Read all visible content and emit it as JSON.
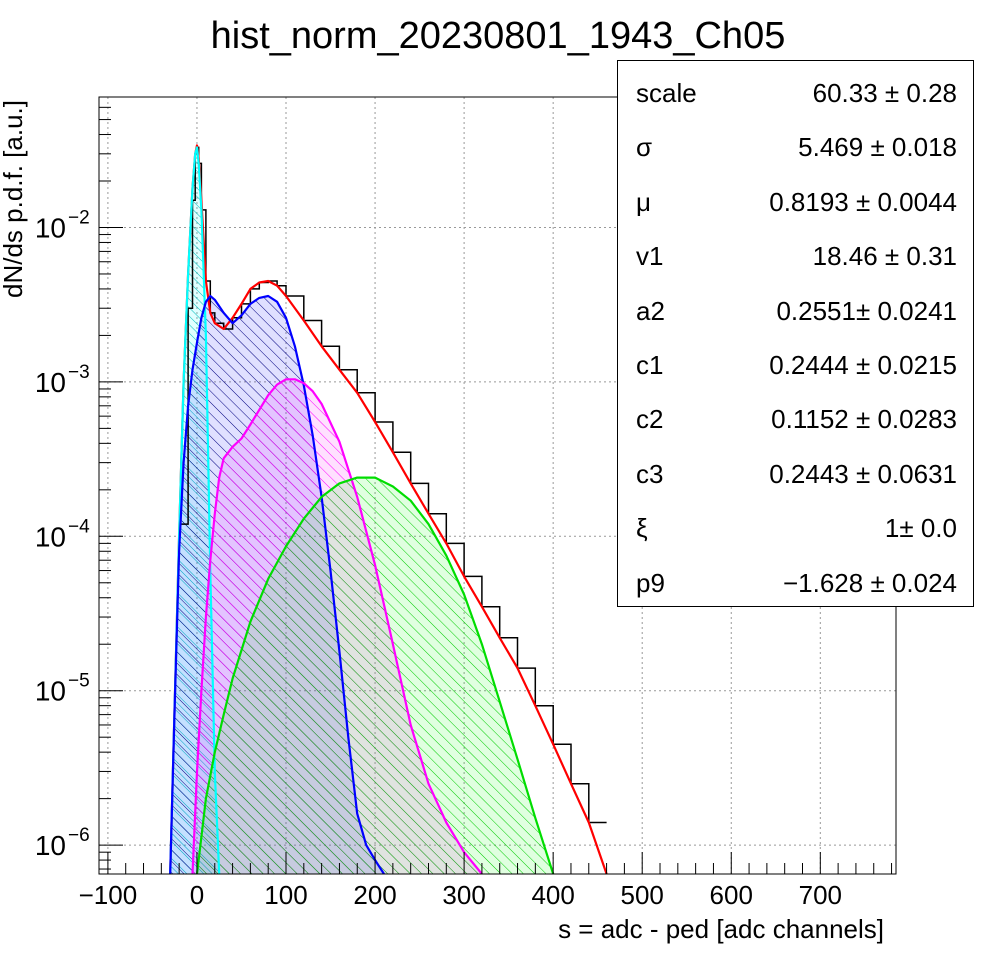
{
  "chart_data": {
    "type": "line",
    "title": "hist_norm_20230801_1943_Ch05",
    "xlabel": "s = adc - ped [adc channels]",
    "ylabel": "dN/ds p.d.f. [a.u.]",
    "xlim": [
      -110,
      785
    ],
    "ylim": [
      6.5e-07,
      0.07
    ],
    "yscale": "log",
    "grid": true,
    "x_ticks": [
      -100,
      0,
      100,
      200,
      300,
      400,
      500,
      600,
      700
    ],
    "x_tick_labels": [
      "−100",
      "0",
      "100",
      "200",
      "300",
      "400",
      "500",
      "600",
      "700"
    ],
    "y_ticks": [
      {
        "value": 0.01,
        "base": "10",
        "exp": "−2"
      },
      {
        "value": 0.001,
        "base": "10",
        "exp": "−3"
      },
      {
        "value": 0.0001,
        "base": "10",
        "exp": "−4"
      },
      {
        "value": 1e-05,
        "base": "10",
        "exp": "−5"
      },
      {
        "value": 1e-06,
        "base": "10",
        "exp": "−6"
      }
    ],
    "series": [
      {
        "color": "#000000",
        "style": "histogram",
        "x": [
          -20,
          -10,
          -5,
          -2,
          0,
          2,
          5,
          10,
          15,
          20,
          30,
          40,
          50,
          60,
          70,
          80,
          90,
          100,
          120,
          140,
          160,
          180,
          200,
          220,
          240,
          260,
          280,
          300,
          320,
          340,
          360,
          380,
          400,
          420,
          440,
          460
        ],
        "y": [
          0.00012,
          0.003,
          0.015,
          0.03,
          0.033,
          0.026,
          0.013,
          0.0045,
          0.0028,
          0.0024,
          0.0022,
          0.0026,
          0.0032,
          0.004,
          0.0044,
          0.0045,
          0.0042,
          0.0036,
          0.0025,
          0.0017,
          0.0012,
          0.00085,
          0.00055,
          0.00035,
          0.00022,
          0.00014,
          9e-05,
          5.5e-05,
          3.5e-05,
          2.2e-05,
          1.4e-05,
          8e-06,
          4.5e-06,
          2.5e-06,
          1.4e-06,
          8e-07
        ]
      },
      {
        "color": "#ff0000",
        "x": [
          -30,
          -20,
          -15,
          -10,
          -5,
          -2,
          0,
          2,
          5,
          10,
          15,
          20,
          30,
          40,
          50,
          60,
          70,
          80,
          90,
          100,
          120,
          140,
          160,
          180,
          200,
          220,
          240,
          260,
          280,
          300,
          320,
          340,
          360,
          380,
          400,
          420,
          440,
          460
        ],
        "y": [
          6.5e-07,
          0.0001,
          0.001,
          0.005,
          0.018,
          0.03,
          0.034,
          0.028,
          0.015,
          0.0045,
          0.0028,
          0.0024,
          0.0022,
          0.0026,
          0.0032,
          0.004,
          0.0044,
          0.0045,
          0.0042,
          0.0036,
          0.0025,
          0.0017,
          0.0012,
          0.00085,
          0.00055,
          0.00035,
          0.00022,
          0.00014,
          9e-05,
          5.5e-05,
          3.5e-05,
          2.2e-05,
          1.4e-05,
          8e-06,
          4.5e-06,
          2.5e-06,
          1.4e-06,
          6.5e-07
        ]
      },
      {
        "color": "#00ffff",
        "fill": "#00ffff",
        "hatch": "cyan",
        "x": [
          -30,
          -20,
          -15,
          -10,
          -5,
          -2,
          0,
          2,
          5,
          10,
          15,
          20,
          25
        ],
        "y": [
          6.5e-07,
          0.0001,
          0.001,
          0.005,
          0.018,
          0.03,
          0.033,
          0.026,
          0.013,
          0.002,
          6e-05,
          3e-06,
          6.5e-07
        ]
      },
      {
        "color": "#0000ff",
        "fill": "#0000ff",
        "hatch": "blue",
        "x": [
          -30,
          -25,
          -20,
          -15,
          -10,
          -5,
          0,
          5,
          10,
          15,
          20,
          30,
          40,
          50,
          60,
          70,
          80,
          90,
          100,
          110,
          120,
          130,
          140,
          150,
          160,
          170,
          180,
          190,
          200,
          210
        ],
        "y": [
          6.5e-07,
          8e-06,
          8e-05,
          0.0003,
          0.0007,
          0.0012,
          0.0018,
          0.0026,
          0.0033,
          0.0036,
          0.0034,
          0.0028,
          0.0024,
          0.0027,
          0.0032,
          0.0035,
          0.0036,
          0.0033,
          0.0026,
          0.0017,
          0.00095,
          0.00045,
          0.00018,
          6e-05,
          1.8e-05,
          5e-06,
          1.6e-06,
          1e-06,
          8e-07,
          6.5e-07
        ]
      },
      {
        "color": "#ff00ff",
        "fill": "#ff00ff",
        "hatch": "magenta",
        "x": [
          -5,
          0,
          5,
          10,
          15,
          20,
          25,
          30,
          40,
          50,
          60,
          70,
          80,
          90,
          100,
          110,
          120,
          130,
          140,
          160,
          180,
          200,
          220,
          240,
          260,
          280,
          300,
          320
        ],
        "y": [
          6.5e-07,
          3e-06,
          1e-05,
          3e-05,
          7e-05,
          0.00014,
          0.00024,
          0.00032,
          0.00038,
          0.00043,
          0.00053,
          0.00066,
          0.00082,
          0.00096,
          0.00104,
          0.00104,
          0.00098,
          0.00087,
          0.00072,
          0.00041,
          0.00018,
          6.5e-05,
          2e-05,
          6e-06,
          2.5e-06,
          1.4e-06,
          9e-07,
          6.5e-07
        ]
      },
      {
        "color": "#00dd00",
        "fill": "#00ff00",
        "hatch": "green",
        "x": [
          0,
          10,
          20,
          30,
          40,
          60,
          80,
          100,
          120,
          140,
          160,
          180,
          200,
          220,
          240,
          260,
          280,
          300,
          320,
          340,
          360,
          380,
          400
        ],
        "y": [
          6.5e-07,
          2e-06,
          4e-06,
          7e-06,
          1.2e-05,
          2.8e-05,
          5.3e-05,
          8.6e-05,
          0.00013,
          0.00018,
          0.00022,
          0.00024,
          0.00024,
          0.00021,
          0.00017,
          0.00012,
          7.5e-05,
          4.2e-05,
          2e-05,
          8.5e-06,
          3.6e-06,
          1.5e-06,
          6.5e-07
        ]
      }
    ]
  },
  "stats": [
    {
      "name": "scale",
      "value": "60.33 ± 0.28"
    },
    {
      "name": "σ",
      "value": "5.469 ± 0.018"
    },
    {
      "name": "μ",
      "value": "0.8193 ± 0.0044"
    },
    {
      "name": "v1",
      "value": "18.46 ± 0.31"
    },
    {
      "name": "a2",
      "value": "0.2551± 0.0241"
    },
    {
      "name": "c1",
      "value": "0.2444 ± 0.0215"
    },
    {
      "name": "c2",
      "value": "0.1152 ± 0.0283"
    },
    {
      "name": "c3",
      "value": "0.2443 ± 0.0631"
    },
    {
      "name": "ξ",
      "value": "1± 0.0"
    },
    {
      "name": "p9",
      "value": "−1.628 ± 0.024"
    }
  ]
}
